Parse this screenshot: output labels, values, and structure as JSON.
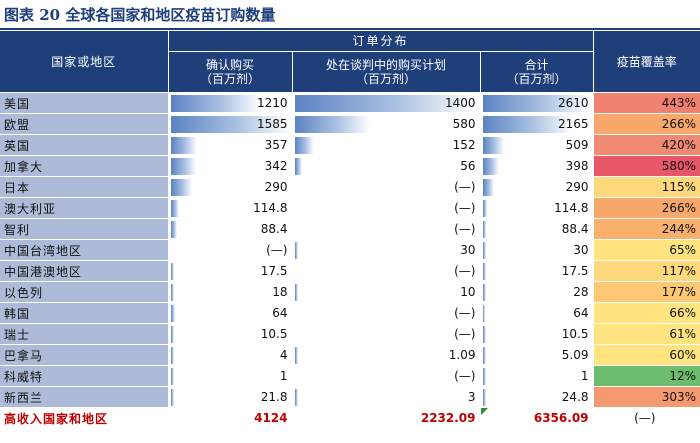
{
  "title": "图表 20   全球各国家和地区疫苗订购数量",
  "headers": {
    "country": "国家或地区",
    "group": "订单分布",
    "confirmed": "确认购买\n（百万剂）",
    "negotiating": "处在谈判中的购买计划\n（百万剂）",
    "total": "合计\n（百万剂）",
    "coverage": "疫苗覆盖率"
  },
  "rows": [
    {
      "country": "美国",
      "confirmed": "1210",
      "negotiating": "1400",
      "total": "2610",
      "coverage": "443%"
    },
    {
      "country": "欧盟",
      "confirmed": "1585",
      "negotiating": "580",
      "total": "2165",
      "coverage": "266%"
    },
    {
      "country": "英国",
      "confirmed": "357",
      "negotiating": "152",
      "total": "509",
      "coverage": "420%"
    },
    {
      "country": "加拿大",
      "confirmed": "342",
      "negotiating": "56",
      "total": "398",
      "coverage": "580%"
    },
    {
      "country": "日本",
      "confirmed": "290",
      "negotiating": "(—)",
      "total": "290",
      "coverage": "115%"
    },
    {
      "country": "澳大利亚",
      "confirmed": "114.8",
      "negotiating": "(—)",
      "total": "114.8",
      "coverage": "266%"
    },
    {
      "country": "智利",
      "confirmed": "88.4",
      "negotiating": "(—)",
      "total": "88.4",
      "coverage": "244%"
    },
    {
      "country": "中国台湾地区",
      "confirmed": "(—)",
      "negotiating": "30",
      "total": "30",
      "coverage": "65%"
    },
    {
      "country": "中国港澳地区",
      "confirmed": "17.5",
      "negotiating": "(—)",
      "total": "17.5",
      "coverage": "117%"
    },
    {
      "country": "以色列",
      "confirmed": "18",
      "negotiating": "10",
      "total": "28",
      "coverage": "177%"
    },
    {
      "country": "韩国",
      "confirmed": "64",
      "negotiating": "(—)",
      "total": "64",
      "coverage": "66%"
    },
    {
      "country": "瑞士",
      "confirmed": "10.5",
      "negotiating": "(—)",
      "total": "10.5",
      "coverage": "61%"
    },
    {
      "country": "巴拿马",
      "confirmed": "4",
      "negotiating": "1.09",
      "total": "5.09",
      "coverage": "60%"
    },
    {
      "country": "科威特",
      "confirmed": "1",
      "negotiating": "(—)",
      "total": "1",
      "coverage": "12%"
    },
    {
      "country": "新西兰",
      "confirmed": "21.8",
      "negotiating": "3",
      "total": "24.8",
      "coverage": "303%"
    }
  ],
  "total_row": {
    "country": "高收入国家和地区",
    "confirmed": "4124",
    "negotiating": "2232.09",
    "total": "6356.09",
    "coverage": "(—)"
  },
  "bar_fractions": {
    "confirmed": [
      0.763,
      1.0,
      0.225,
      0.216,
      0.183,
      0.072,
      0.056,
      0,
      0.011,
      0.011,
      0.04,
      0.007,
      0.003,
      0.001,
      0.014
    ],
    "negotiating": [
      1.0,
      0.414,
      0.109,
      0.04,
      0,
      0,
      0,
      0.021,
      0,
      0.007,
      0,
      0,
      0.001,
      0,
      0.002
    ],
    "total": [
      1.0,
      0.83,
      0.195,
      0.152,
      0.111,
      0.044,
      0.034,
      0.011,
      0.007,
      0.011,
      0.025,
      0.004,
      0.002,
      0.0004,
      0.01
    ]
  },
  "coverage_colors": [
    "#f08070",
    "#f8a86b",
    "#f08a72",
    "#e8566a",
    "#fed97c",
    "#f8a86b",
    "#f9b06c",
    "#ffe47f",
    "#fed97c",
    "#fcc876",
    "#ffe47f",
    "#ffe380",
    "#ffe47f",
    "#6dbd6e",
    "#f59a70"
  ],
  "colors": {
    "header": "#1f3f7a",
    "country_bg": "#aebbd8",
    "bar": "#5b83c2",
    "total_text": "#c00000"
  }
}
